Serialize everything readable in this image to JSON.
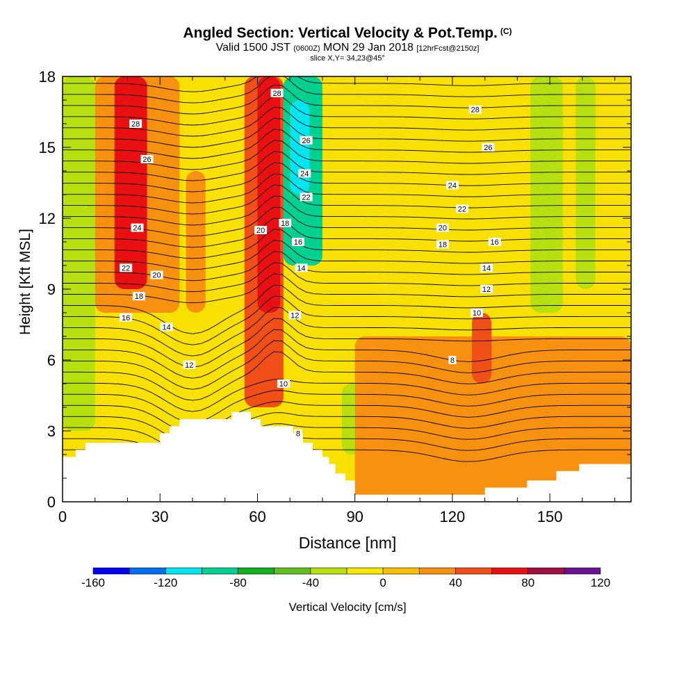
{
  "chart_data": {
    "type": "heatmap",
    "title": "Angled Section: Vertical Velocity & Pot.Temp.",
    "title_suffix": "(C)",
    "subtitle_valid": "Valid 1500 JST",
    "subtitle_utc": "(0600Z)",
    "subtitle_date": "MON 29 Jan 2018",
    "subtitle_fcst": "[12hrFcst@2150z]",
    "slice_label": "slice X,Y= 34,23@45°",
    "xlabel": "Distance [nm]",
    "ylabel": "Height [Kft MSL]",
    "xlim": [
      0,
      175
    ],
    "ylim": [
      0,
      18
    ],
    "x_ticks": [
      "0",
      "30",
      "60",
      "90",
      "120",
      "150"
    ],
    "x_tick_values": [
      0,
      30,
      60,
      90,
      120,
      150
    ],
    "y_ticks": [
      "0",
      "3",
      "6",
      "9",
      "12",
      "15",
      "18"
    ],
    "y_tick_values": [
      0,
      3,
      6,
      9,
      12,
      15,
      18
    ],
    "colorbar": {
      "label": "Vertical Velocity [cm/s]",
      "ticks": [
        "-160",
        "-120",
        "-80",
        "-40",
        "0",
        "40",
        "80",
        "120"
      ],
      "tick_values": [
        -160,
        -120,
        -80,
        -40,
        0,
        40,
        80,
        120
      ],
      "colors": [
        "#0000f0",
        "#0070f0",
        "#00e6f0",
        "#00d090",
        "#10b020",
        "#60c020",
        "#b8e010",
        "#f8e800",
        "#f8c000",
        "#f89010",
        "#f05018",
        "#e81010",
        "#a01040",
        "#6a1090"
      ]
    },
    "background_field": [
      {
        "x_range": [
          0,
          10
        ],
        "y_range": [
          3,
          18
        ],
        "w": -30
      },
      {
        "x_range": [
          10,
          36
        ],
        "y_range": [
          8,
          18
        ],
        "w": 20
      },
      {
        "x_range": [
          16,
          26
        ],
        "y_range": [
          9,
          18
        ],
        "w": 60
      },
      {
        "x_range": [
          38,
          44
        ],
        "y_range": [
          8,
          14
        ],
        "w": 30
      },
      {
        "x_range": [
          56,
          68
        ],
        "y_range": [
          4,
          18
        ],
        "w": 50
      },
      {
        "x_range": [
          60,
          67
        ],
        "y_range": [
          8,
          18
        ],
        "w": 70
      },
      {
        "x_range": [
          68,
          80
        ],
        "y_range": [
          10,
          18
        ],
        "w": -100
      },
      {
        "x_range": [
          70,
          76
        ],
        "y_range": [
          13,
          17
        ],
        "w": -120
      },
      {
        "x_range": [
          86,
          94
        ],
        "y_range": [
          2,
          5
        ],
        "w": -30
      },
      {
        "x_range": [
          90,
          175
        ],
        "y_range": [
          0,
          7
        ],
        "w": 20
      },
      {
        "x_range": [
          126,
          132
        ],
        "y_range": [
          5,
          8
        ],
        "w": 40
      },
      {
        "x_range": [
          144,
          154
        ],
        "y_range": [
          8,
          18
        ],
        "w": -30
      },
      {
        "x_range": [
          158,
          164
        ],
        "y_range": [
          9,
          18
        ],
        "w": -30
      }
    ],
    "theta_contour_labels": [
      {
        "x": 22.5,
        "y": 16.0,
        "text": "28"
      },
      {
        "x": 26,
        "y": 14.5,
        "text": "26"
      },
      {
        "x": 23,
        "y": 11.6,
        "text": "24"
      },
      {
        "x": 19.5,
        "y": 9.9,
        "text": "22"
      },
      {
        "x": 29,
        "y": 9.6,
        "text": "20"
      },
      {
        "x": 23.5,
        "y": 8.7,
        "text": "18"
      },
      {
        "x": 19.5,
        "y": 7.8,
        "text": "16"
      },
      {
        "x": 32,
        "y": 7.4,
        "text": "14"
      },
      {
        "x": 39,
        "y": 5.8,
        "text": "12"
      },
      {
        "x": 66,
        "y": 17.3,
        "text": "28"
      },
      {
        "x": 75,
        "y": 15.3,
        "text": "26"
      },
      {
        "x": 74.5,
        "y": 13.9,
        "text": "24"
      },
      {
        "x": 75,
        "y": 12.9,
        "text": "22"
      },
      {
        "x": 61,
        "y": 11.5,
        "text": "20"
      },
      {
        "x": 68.5,
        "y": 11.8,
        "text": "18"
      },
      {
        "x": 72.5,
        "y": 11.0,
        "text": "16"
      },
      {
        "x": 73.5,
        "y": 9.9,
        "text": "14"
      },
      {
        "x": 71.5,
        "y": 7.9,
        "text": "12"
      },
      {
        "x": 68,
        "y": 5.0,
        "text": "10"
      },
      {
        "x": 72.5,
        "y": 2.9,
        "text": "8"
      },
      {
        "x": 127,
        "y": 16.6,
        "text": "28"
      },
      {
        "x": 131,
        "y": 15.0,
        "text": "26"
      },
      {
        "x": 120,
        "y": 13.4,
        "text": "24"
      },
      {
        "x": 123,
        "y": 12.4,
        "text": "22"
      },
      {
        "x": 117,
        "y": 11.6,
        "text": "20"
      },
      {
        "x": 117,
        "y": 10.9,
        "text": "18"
      },
      {
        "x": 133,
        "y": 11.0,
        "text": "16"
      },
      {
        "x": 130.5,
        "y": 9.9,
        "text": "14"
      },
      {
        "x": 130.5,
        "y": 9.0,
        "text": "12"
      },
      {
        "x": 127.5,
        "y": 8.0,
        "text": "10"
      },
      {
        "x": 120,
        "y": 6.0,
        "text": "8"
      }
    ],
    "terrain": [
      [
        0,
        1.9
      ],
      [
        4,
        1.9
      ],
      [
        4,
        2.2
      ],
      [
        7,
        2.2
      ],
      [
        7,
        2.5
      ],
      [
        30,
        2.5
      ],
      [
        30,
        2.9
      ],
      [
        33,
        2.9
      ],
      [
        33,
        3.2
      ],
      [
        36,
        3.2
      ],
      [
        36,
        3.5
      ],
      [
        52,
        3.5
      ],
      [
        52,
        3.8
      ],
      [
        58,
        3.8
      ],
      [
        58,
        3.5
      ],
      [
        61,
        3.5
      ],
      [
        61,
        3.2
      ],
      [
        71,
        3.2
      ],
      [
        71,
        2.9
      ],
      [
        74,
        2.9
      ],
      [
        74,
        2.5
      ],
      [
        77,
        2.5
      ],
      [
        77,
        2.2
      ],
      [
        80,
        2.2
      ],
      [
        80,
        1.9
      ],
      [
        82,
        1.9
      ],
      [
        82,
        1.6
      ],
      [
        84,
        1.6
      ],
      [
        84,
        1.2
      ],
      [
        87,
        1.2
      ],
      [
        87,
        0.9
      ],
      [
        90,
        0.9
      ],
      [
        90,
        0.3
      ],
      [
        130,
        0.3
      ],
      [
        130,
        0.6
      ],
      [
        143,
        0.6
      ],
      [
        143,
        0.9
      ],
      [
        152,
        0.9
      ],
      [
        152,
        1.3
      ],
      [
        159,
        1.3
      ],
      [
        159,
        1.6
      ],
      [
        175,
        1.6
      ]
    ]
  }
}
